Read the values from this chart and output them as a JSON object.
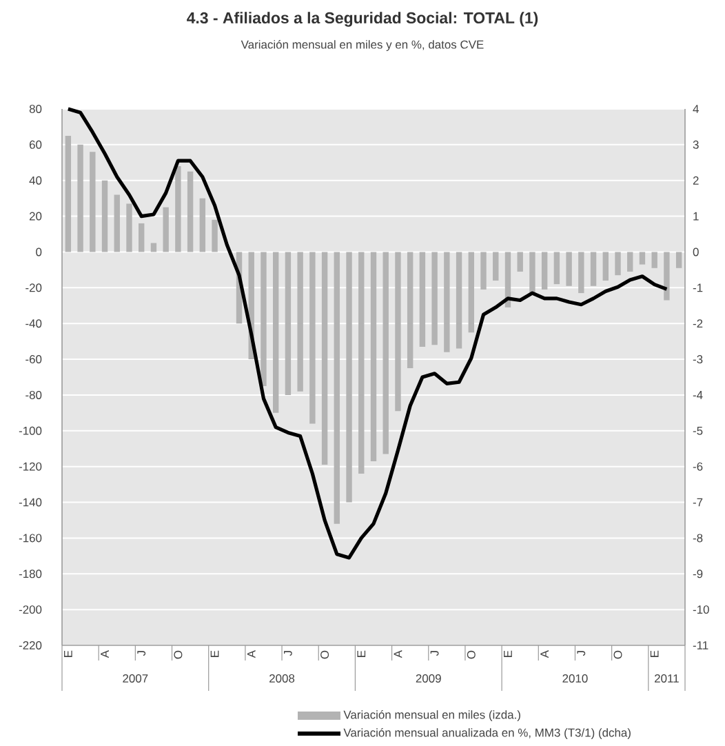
{
  "chart_data": {
    "type": "bar",
    "title": "4.3 - Afiliados a la Seguridad Social: TOTAL (1)",
    "subtitle": "Variación mensual en miles y en %, datos CVE",
    "categories": [
      "E",
      null,
      null,
      "A",
      null,
      null,
      "J",
      null,
      null,
      "O",
      null,
      null,
      "E",
      null,
      null,
      "A",
      null,
      null,
      "J",
      null,
      null,
      "O",
      null,
      null,
      "E",
      null,
      null,
      "A",
      null,
      null,
      "J",
      null,
      null,
      "O",
      null,
      null,
      "E",
      null,
      null,
      "A",
      null,
      null,
      "J",
      null,
      null,
      "O",
      null,
      null,
      "E",
      null,
      null
    ],
    "series": [
      {
        "name": "Variación mensual en miles (izda.)",
        "color": "#b3b3b3",
        "values": [
          65,
          60,
          56,
          40,
          32,
          27,
          16,
          5,
          25,
          48,
          45,
          30,
          18,
          null,
          -40,
          -60,
          -75,
          -90,
          -80,
          -78,
          -96,
          -119,
          -152,
          -140,
          -124,
          -117,
          -113,
          -89,
          -65,
          -53,
          -52,
          -56,
          -54,
          -45,
          -21,
          -16,
          -31,
          -11,
          -23,
          -21,
          -18,
          -19,
          -23,
          -19,
          -16,
          -13,
          -11,
          -7,
          -9,
          -27,
          -9
        ]
      },
      {
        "name": "Variación mensual anualizada en %, MM3 (T3/1)  (dcha)",
        "type": "line",
        "axis": "y2",
        "color": "#000000",
        "values": [
          4.0,
          3.9,
          3.35,
          2.75,
          2.1,
          1.6,
          1.0,
          1.05,
          1.65,
          2.55,
          2.55,
          2.1,
          1.3,
          0.2,
          -0.65,
          -2.3,
          -4.1,
          -4.9,
          -5.05,
          -5.15,
          -6.2,
          -7.5,
          -8.45,
          -8.55,
          -8.0,
          -7.6,
          -6.75,
          -5.55,
          -4.3,
          -3.5,
          -3.4,
          -3.68,
          -3.64,
          -2.97,
          -1.75,
          -1.55,
          -1.3,
          -1.35,
          -1.15,
          -1.3,
          -1.3,
          -1.4,
          -1.47,
          -1.3,
          -1.1,
          -0.98,
          -0.78,
          -0.68,
          -0.91,
          -1.04,
          null
        ]
      }
    ],
    "ylim": [
      -220,
      80
    ],
    "yticks": [
      -220,
      -200,
      -180,
      -160,
      -140,
      -120,
      -100,
      -80,
      -60,
      -40,
      -20,
      0,
      20,
      40,
      60,
      80
    ],
    "y2lim": [
      -11,
      4
    ],
    "y2ticks": [
      -11,
      -10,
      -9,
      -8,
      -7,
      -6,
      -5,
      -4,
      -3,
      -2,
      -1,
      0,
      1,
      2,
      3,
      4
    ],
    "grid": "y",
    "legend": "bottom",
    "marker": "none",
    "line_style": "solid",
    "annotations": [
      "2007",
      "2008",
      "2009",
      "2010",
      "2011"
    ]
  }
}
